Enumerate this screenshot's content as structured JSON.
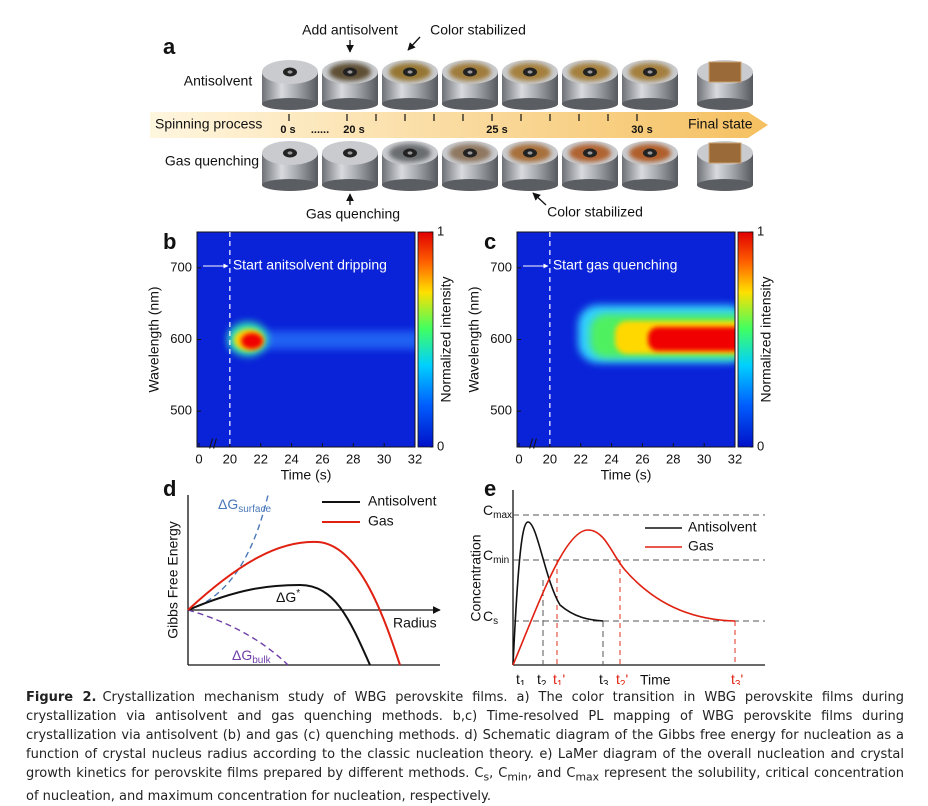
{
  "panel_a": {
    "label": "a",
    "rows": [
      "Antisolvent",
      "Gas quenching"
    ],
    "top_annotations": [
      "Add antisolvent",
      "Color stabilized"
    ],
    "bottom_annotations": [
      "Gas quenching",
      "Color stabilized"
    ],
    "timeline": {
      "title": "Spinning process",
      "labels": [
        "0 s",
        "......",
        "20 s",
        "25 s",
        "30 s"
      ],
      "end": "Final state"
    }
  },
  "panel_b": {
    "label": "b",
    "x_label": "Time (s)",
    "y_label": "Wavelength (nm)",
    "annotation": "Start anitsolvent dripping",
    "xticks": [
      0,
      20,
      22,
      24,
      26,
      28,
      30,
      32
    ],
    "yticks": [
      500,
      600,
      700
    ],
    "ylim": [
      450,
      750
    ],
    "colorbar": {
      "label": "Normalized intensity",
      "ticks": [
        0,
        1
      ]
    }
  },
  "panel_c": {
    "label": "c",
    "x_label": "Time (s)",
    "y_label": "Wavelength (nm)",
    "annotation": "Start gas quenching",
    "xticks": [
      0,
      20,
      22,
      24,
      26,
      28,
      30,
      32
    ],
    "yticks": [
      500,
      600,
      700
    ],
    "ylim": [
      450,
      750
    ],
    "colorbar": {
      "label": "Normalized intensity",
      "ticks": [
        0,
        1
      ]
    }
  },
  "panel_d": {
    "label": "d",
    "y_label": "Gibbs Free Energy",
    "x_label": "Radius",
    "legend": [
      "Antisolvent",
      "Gas"
    ],
    "surface": {
      "base": "ΔG",
      "sub": "surface"
    },
    "bulk": {
      "base": "ΔG",
      "sub": "bulk"
    },
    "critical": {
      "base": "ΔG",
      "sup": "*"
    }
  },
  "panel_e": {
    "label": "e",
    "y_label": "Concentration",
    "x_label": "Time",
    "legend": [
      "Antisolvent",
      "Gas"
    ],
    "levels": [
      {
        "base": "C",
        "sub": "max"
      },
      {
        "base": "C",
        "sub": "min"
      },
      {
        "base": "C",
        "sub": "s"
      }
    ],
    "times": [
      {
        "base": "t",
        "sub": "1"
      },
      {
        "base": "t",
        "sub": "2"
      },
      {
        "base": "t",
        "sub": "1",
        "suffix": "'"
      },
      {
        "base": "t",
        "sub": "3"
      },
      {
        "base": "t",
        "sub": "2",
        "suffix": "'"
      },
      {
        "base": "t",
        "sub": "3",
        "suffix": "'"
      }
    ]
  },
  "caption": [
    {
      "bold": "Figure 2."
    },
    {
      "text": "Crystallization mechanism study of WBG perovskite films. a) The color transition in WBG perovskite films during crystallization via antisolvent and gas quenching methods. b,c) Time-resolved PL mapping of WBG perovskite films during crystallization via antisolvent (b) and gas (c) quenching methods. d) Schematic diagram of the Gibbs free energy for nucleation as a function of crystal nucleus radius according to the classic nucleation theory. e) LaMer diagram of the overall nucleation and crystal growth kinetics for perovskite films prepared by different methods. C"
    },
    {
      "sub": "s"
    },
    {
      "text": ", C"
    },
    {
      "sub": "min"
    },
    {
      "text": ", and C"
    },
    {
      "sub": "max"
    },
    {
      "text": " represent the solubility, critical concentration of nucleation, and maximum concentration for nucleation, respectively."
    }
  ]
}
